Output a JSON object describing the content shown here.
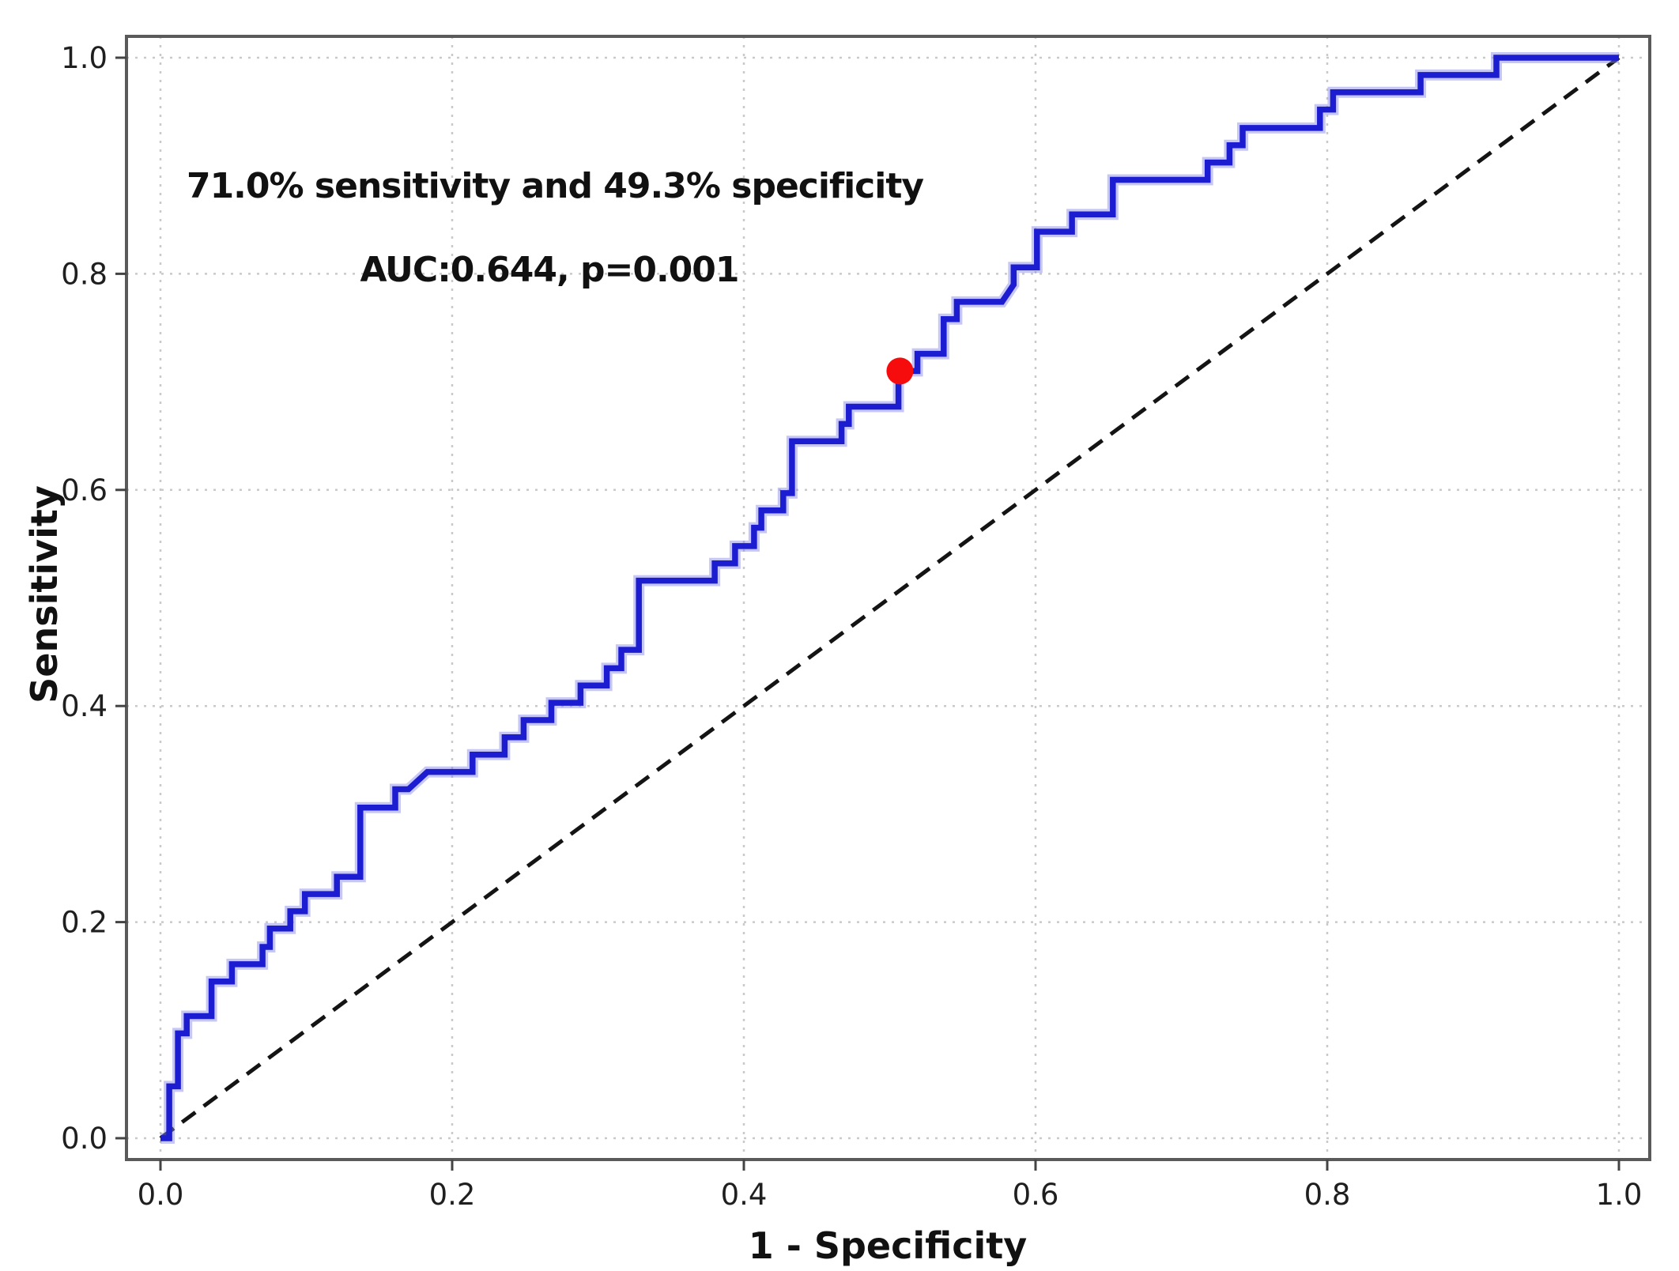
{
  "chart_data": {
    "type": "line",
    "subtype": "roc_step_curve",
    "title": "",
    "xlabel": "1 - Specificity",
    "ylabel": "Sensitivity",
    "xlim": [
      0.0,
      1.0
    ],
    "ylim": [
      0.0,
      1.0
    ],
    "x_tick_labels": [
      "0.0",
      "0.2",
      "0.4",
      "0.6",
      "0.8",
      "1.0"
    ],
    "y_tick_labels": [
      "0.0",
      "0.2",
      "0.4",
      "0.6",
      "0.8",
      "1.0"
    ],
    "x_tick_values": [
      0.0,
      0.2,
      0.4,
      0.6,
      0.8,
      1.0
    ],
    "y_tick_values": [
      0.0,
      0.2,
      0.4,
      0.6,
      0.8,
      1.0
    ],
    "grid": true,
    "grid_style": "dotted",
    "legend_position": "none",
    "annotations": [
      "71.0% sensitivity and 49.3% specificity",
      "AUC:0.644, p=0.001"
    ],
    "auc": 0.644,
    "p_value": 0.001,
    "sensitivity_pct": 71.0,
    "specificity_pct": 49.3,
    "optimal_point": {
      "x": 0.507,
      "y": 0.71,
      "color": "#f60c0c",
      "marker": "circle"
    },
    "reference_line": {
      "points": [
        [
          0.0,
          0.0
        ],
        [
          1.0,
          1.0
        ]
      ],
      "style": "dashed",
      "color": "#141414"
    },
    "series": [
      {
        "name": "ROC curve",
        "color": "#1c1cd1",
        "step_vertices": [
          [
            0.0,
            0.0
          ],
          [
            0.006,
            0.0
          ],
          [
            0.006,
            0.048
          ],
          [
            0.012,
            0.048
          ],
          [
            0.012,
            0.097
          ],
          [
            0.018,
            0.097
          ],
          [
            0.018,
            0.113
          ],
          [
            0.035,
            0.113
          ],
          [
            0.035,
            0.145
          ],
          [
            0.049,
            0.145
          ],
          [
            0.049,
            0.161
          ],
          [
            0.07,
            0.161
          ],
          [
            0.07,
            0.177
          ],
          [
            0.075,
            0.177
          ],
          [
            0.075,
            0.194
          ],
          [
            0.089,
            0.194
          ],
          [
            0.089,
            0.21
          ],
          [
            0.099,
            0.21
          ],
          [
            0.099,
            0.226
          ],
          [
            0.121,
            0.226
          ],
          [
            0.121,
            0.242
          ],
          [
            0.137,
            0.242
          ],
          [
            0.137,
            0.306
          ],
          [
            0.161,
            0.306
          ],
          [
            0.161,
            0.323
          ],
          [
            0.17,
            0.323
          ],
          [
            0.183,
            0.339
          ],
          [
            0.214,
            0.339
          ],
          [
            0.214,
            0.355
          ],
          [
            0.236,
            0.355
          ],
          [
            0.236,
            0.371
          ],
          [
            0.249,
            0.371
          ],
          [
            0.249,
            0.387
          ],
          [
            0.268,
            0.387
          ],
          [
            0.268,
            0.403
          ],
          [
            0.288,
            0.403
          ],
          [
            0.288,
            0.419
          ],
          [
            0.306,
            0.419
          ],
          [
            0.306,
            0.435
          ],
          [
            0.316,
            0.435
          ],
          [
            0.316,
            0.452
          ],
          [
            0.328,
            0.452
          ],
          [
            0.328,
            0.516
          ],
          [
            0.38,
            0.516
          ],
          [
            0.38,
            0.532
          ],
          [
            0.394,
            0.532
          ],
          [
            0.394,
            0.548
          ],
          [
            0.407,
            0.548
          ],
          [
            0.407,
            0.565
          ],
          [
            0.412,
            0.565
          ],
          [
            0.412,
            0.581
          ],
          [
            0.427,
            0.581
          ],
          [
            0.427,
            0.597
          ],
          [
            0.433,
            0.597
          ],
          [
            0.433,
            0.645
          ],
          [
            0.467,
            0.645
          ],
          [
            0.467,
            0.661
          ],
          [
            0.472,
            0.661
          ],
          [
            0.472,
            0.677
          ],
          [
            0.506,
            0.677
          ],
          [
            0.506,
            0.71
          ],
          [
            0.519,
            0.71
          ],
          [
            0.519,
            0.726
          ],
          [
            0.537,
            0.726
          ],
          [
            0.537,
            0.758
          ],
          [
            0.546,
            0.758
          ],
          [
            0.546,
            0.774
          ],
          [
            0.577,
            0.774
          ],
          [
            0.585,
            0.79
          ],
          [
            0.585,
            0.806
          ],
          [
            0.601,
            0.806
          ],
          [
            0.601,
            0.839
          ],
          [
            0.625,
            0.839
          ],
          [
            0.625,
            0.855
          ],
          [
            0.653,
            0.855
          ],
          [
            0.653,
            0.887
          ],
          [
            0.718,
            0.887
          ],
          [
            0.718,
            0.903
          ],
          [
            0.733,
            0.903
          ],
          [
            0.733,
            0.919
          ],
          [
            0.742,
            0.919
          ],
          [
            0.742,
            0.935
          ],
          [
            0.795,
            0.935
          ],
          [
            0.795,
            0.952
          ],
          [
            0.804,
            0.952
          ],
          [
            0.804,
            0.968
          ],
          [
            0.864,
            0.968
          ],
          [
            0.864,
            0.984
          ],
          [
            0.916,
            0.984
          ],
          [
            0.916,
            1.0
          ],
          [
            1.0,
            1.0
          ]
        ]
      }
    ]
  },
  "style_colors": {
    "curve_blue": "#1c1cd1",
    "curve_halo": "rgba(130,130,232,0.45)",
    "optimal_point_red": "#f60c0c",
    "reference_black": "#141414",
    "grid_gray": "#c9c9c9",
    "spine_gray": "#5a5a5a",
    "tick_gray": "#444444",
    "text_dark": "#111111",
    "background": "#ffffff"
  }
}
